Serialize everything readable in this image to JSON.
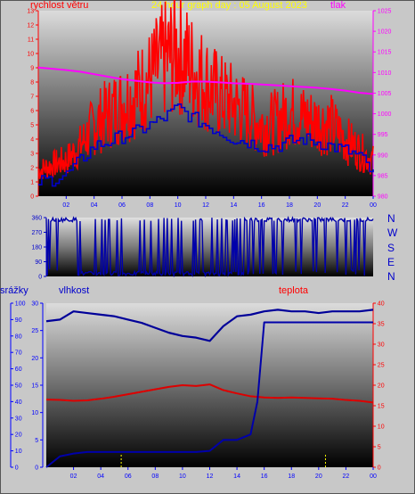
{
  "header": {
    "left_label": "rychlost větru",
    "title": "24 hour graph day : 05 August 2023",
    "right_label": "tlak"
  },
  "compass": [
    "N",
    "W",
    "S",
    "E",
    "N"
  ],
  "bottom_labels": {
    "left": "srážky",
    "mid": "vlhkost",
    "right": "teplota"
  },
  "colors": {
    "wind": "#ff0000",
    "gust_avg": "#0000cc",
    "pressure": "#ff00ff",
    "humidity": "#000099",
    "temperature": "#dd0000",
    "rain": "#1a1aa0",
    "rain_bar": "#ffff00",
    "title": "#ffff00",
    "axis_left": "#ff0000",
    "axis_right": "#ff00ff",
    "axis_blue": "#0000ff"
  },
  "chart_data": [
    {
      "type": "line",
      "name": "wind-pressure",
      "x_ticks": [
        "02",
        "04",
        "06",
        "08",
        "10",
        "12",
        "14",
        "16",
        "18",
        "20",
        "22",
        "00"
      ],
      "left_axis": {
        "ylim": [
          0,
          13
        ],
        "ticks": [
          "0",
          "1",
          "2",
          "3",
          "4",
          "5",
          "6",
          "7",
          "8",
          "9",
          "10",
          "11",
          "12",
          "13"
        ]
      },
      "right_axis": {
        "ylim": [
          980,
          1025
        ],
        "ticks": [
          "980",
          "985",
          "990",
          "995",
          "1000",
          "1005",
          "1010",
          "1015",
          "1020",
          "1025"
        ]
      },
      "series": [
        {
          "key": "wind",
          "x": [
            0,
            1,
            2,
            3,
            4,
            5,
            6,
            7,
            8,
            9,
            10,
            11,
            12,
            13,
            14,
            15,
            16,
            17,
            18,
            19,
            20,
            21,
            22,
            23,
            24
          ],
          "values": [
            1.8,
            2.2,
            2.5,
            3.5,
            5.0,
            5.8,
            6.5,
            7.2,
            8.2,
            9.5,
            10.2,
            9.0,
            8.0,
            7.0,
            6.5,
            5.8,
            5.0,
            5.2,
            6.0,
            5.5,
            5.2,
            5.0,
            4.0,
            3.2,
            2.5
          ]
        },
        {
          "key": "gust_avg",
          "x": [
            0,
            1,
            2,
            3,
            4,
            5,
            6,
            7,
            8,
            9,
            10,
            11,
            12,
            13,
            14,
            15,
            16,
            17,
            18,
            19,
            20,
            21,
            22,
            23,
            24
          ],
          "values": [
            1.0,
            1.2,
            1.5,
            2.5,
            3.5,
            3.8,
            4.2,
            4.5,
            5.0,
            5.5,
            6.2,
            5.5,
            5.0,
            4.5,
            4.0,
            3.8,
            3.5,
            3.5,
            3.8,
            4.0,
            3.8,
            3.5,
            3.2,
            2.8,
            1.5
          ]
        },
        {
          "key": "pressure",
          "axis": "right",
          "x": [
            0,
            1,
            2,
            3,
            4,
            5,
            6,
            7,
            8,
            9,
            10,
            11,
            12,
            13,
            14,
            15,
            16,
            17,
            18,
            19,
            20,
            21,
            22,
            23,
            24
          ],
          "values": [
            1011.2,
            1010.9,
            1010.6,
            1010.2,
            1009.6,
            1009.0,
            1008.4,
            1008.0,
            1007.6,
            1007.4,
            1007.5,
            1007.8,
            1007.8,
            1007.6,
            1007.4,
            1007.3,
            1007.1,
            1006.9,
            1006.7,
            1006.5,
            1006.3,
            1006.0,
            1005.6,
            1005.1,
            1004.8
          ]
        }
      ]
    },
    {
      "type": "line",
      "name": "wind-direction",
      "x_ticks": [
        "02",
        "04",
        "06",
        "08",
        "10",
        "12",
        "14",
        "16",
        "18",
        "20",
        "22",
        "00"
      ],
      "ylim": [
        0,
        360
      ],
      "y_ticks": [
        "0",
        "90",
        "180",
        "270",
        "360"
      ],
      "series": [
        {
          "key": "direction",
          "x": [
            0,
            1,
            2,
            3,
            4,
            5,
            6,
            7,
            8,
            9,
            10,
            11,
            12,
            13,
            14,
            15,
            16,
            17,
            18,
            19,
            20,
            21,
            22,
            23,
            24
          ],
          "values": [
            350,
            340,
            350,
            80,
            350,
            30,
            340,
            20,
            30,
            20,
            10,
            20,
            10,
            40,
            20,
            15,
            350,
            340,
            355,
            340,
            350,
            200,
            350,
            340,
            250
          ]
        }
      ]
    },
    {
      "type": "line",
      "name": "humidity-temperature-rain",
      "x_ticks": [
        "02",
        "04",
        "06",
        "08",
        "10",
        "12",
        "14",
        "16",
        "18",
        "20",
        "22",
        "00"
      ],
      "left_axis_rain": {
        "ylim": [
          0,
          100
        ],
        "ticks": [
          "0",
          "10",
          "20",
          "30",
          "40",
          "50",
          "60",
          "70",
          "80",
          "90",
          "100"
        ]
      },
      "left_axis_humidity": {
        "ylim": [
          0,
          30
        ],
        "ticks": [
          "0",
          "5",
          "10",
          "15",
          "20",
          "25",
          "30"
        ]
      },
      "right_axis": {
        "ylim": [
          0,
          40
        ],
        "ticks": [
          "0",
          "5",
          "10",
          "15",
          "20",
          "25",
          "30",
          "35",
          "40"
        ]
      },
      "series": [
        {
          "key": "humidity",
          "x": [
            0,
            1,
            2,
            3,
            4,
            5,
            6,
            7,
            8,
            9,
            10,
            11,
            12,
            13,
            14,
            15,
            16,
            17,
            18,
            19,
            20,
            21,
            22,
            23,
            24
          ],
          "values": [
            89,
            90,
            95,
            94,
            93,
            92,
            90,
            88,
            85,
            82,
            80,
            79,
            77,
            86,
            92,
            93,
            95,
            96,
            95,
            95,
            94,
            95,
            95,
            95,
            96
          ]
        },
        {
          "key": "temperature",
          "axis": "right",
          "x": [
            0,
            1,
            2,
            3,
            4,
            5,
            6,
            7,
            8,
            9,
            10,
            11,
            12,
            13,
            14,
            15,
            16,
            17,
            18,
            19,
            20,
            21,
            22,
            23,
            24
          ],
          "values": [
            16.5,
            16.4,
            16.2,
            16.3,
            16.7,
            17.2,
            17.8,
            18.4,
            19.0,
            19.6,
            20.0,
            19.8,
            20.2,
            18.8,
            18.0,
            17.3,
            17.0,
            16.9,
            17.0,
            16.9,
            16.8,
            16.7,
            16.4,
            16.2,
            15.8
          ]
        },
        {
          "key": "rain",
          "x": [
            0,
            1,
            2,
            3,
            4,
            5,
            6,
            7,
            8,
            9,
            10,
            11,
            12,
            13,
            14,
            15,
            15.5,
            16,
            17,
            18,
            19,
            20,
            21,
            22,
            23,
            24
          ],
          "values": [
            0,
            2,
            2.5,
            2.8,
            2.8,
            2.8,
            2.8,
            2.8,
            2.8,
            2.8,
            2.8,
            2.8,
            3,
            5,
            5,
            6,
            12,
            26.5,
            26.5,
            26.5,
            26.5,
            26.5,
            26.5,
            26.5,
            26.5,
            26.5
          ]
        }
      ],
      "rain_marks_x": [
        5.5,
        20.5
      ]
    }
  ]
}
